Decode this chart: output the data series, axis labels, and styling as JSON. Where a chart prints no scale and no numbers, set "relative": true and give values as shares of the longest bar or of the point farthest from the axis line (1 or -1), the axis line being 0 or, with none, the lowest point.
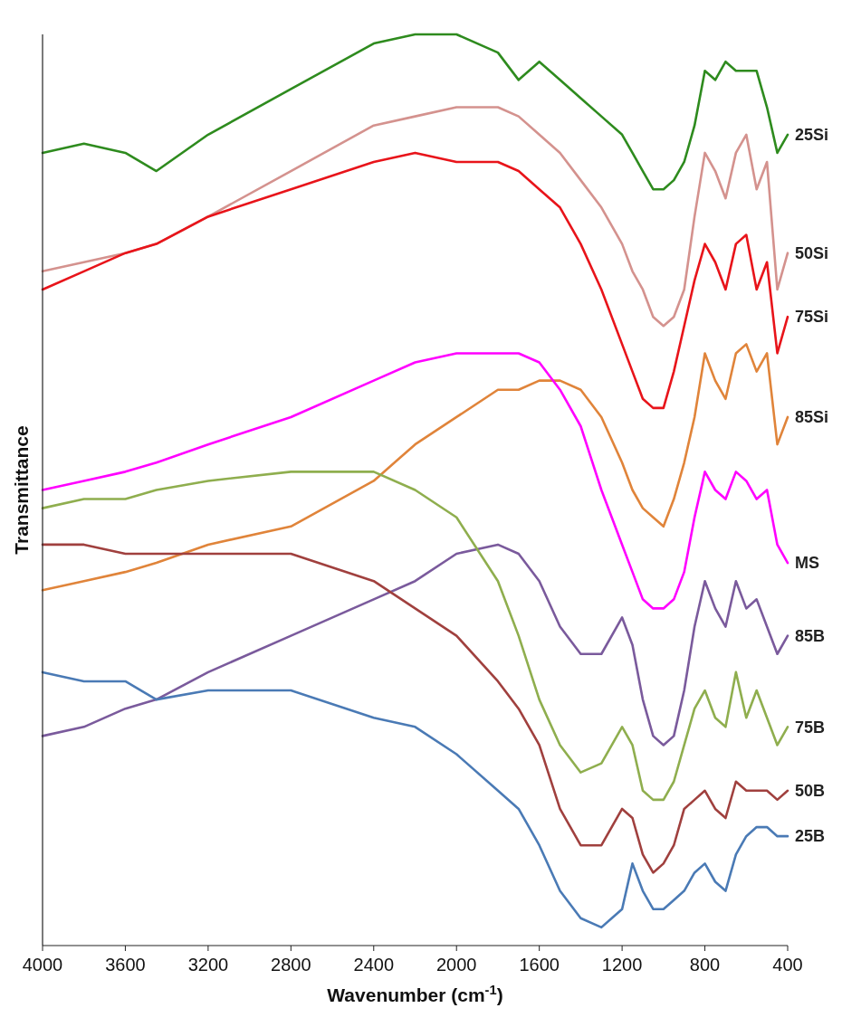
{
  "chart_data": {
    "type": "line",
    "relative": true,
    "xlabel": "Wavenumber (cm$^{-1}$)",
    "ylabel": "Transmittance",
    "xlim": [
      4000,
      400
    ],
    "xticks": [
      4000,
      3600,
      3200,
      2800,
      2400,
      2000,
      1600,
      1200,
      800,
      400
    ],
    "x": [
      4000,
      3800,
      3600,
      3450,
      3200,
      2800,
      2400,
      2200,
      2000,
      1800,
      1700,
      1600,
      1500,
      1400,
      1300,
      1200,
      1150,
      1100,
      1050,
      1000,
      950,
      900,
      850,
      800,
      750,
      700,
      650,
      600,
      550,
      500,
      450,
      400
    ],
    "series": [
      {
        "name": "25Si",
        "color": "#2e8b1e",
        "values": [
          0.87,
          0.88,
          0.87,
          0.85,
          0.89,
          0.94,
          0.99,
          1.0,
          1.0,
          0.98,
          0.95,
          0.97,
          0.95,
          0.93,
          0.91,
          0.89,
          0.87,
          0.85,
          0.83,
          0.83,
          0.84,
          0.86,
          0.9,
          0.96,
          0.95,
          0.97,
          0.96,
          0.96,
          0.96,
          0.92,
          0.87,
          0.89
        ]
      },
      {
        "name": "50Si",
        "color": "#d4928e",
        "values": [
          0.74,
          0.75,
          0.76,
          0.77,
          0.8,
          0.85,
          0.9,
          0.91,
          0.92,
          0.92,
          0.91,
          0.89,
          0.87,
          0.84,
          0.81,
          0.77,
          0.74,
          0.72,
          0.69,
          0.68,
          0.69,
          0.72,
          0.8,
          0.87,
          0.85,
          0.82,
          0.87,
          0.89,
          0.83,
          0.86,
          0.72,
          0.76
        ]
      },
      {
        "name": "75Si",
        "color": "#e8141a",
        "values": [
          0.72,
          0.74,
          0.76,
          0.77,
          0.8,
          0.83,
          0.86,
          0.87,
          0.86,
          0.86,
          0.85,
          0.83,
          0.81,
          0.77,
          0.72,
          0.66,
          0.63,
          0.6,
          0.59,
          0.59,
          0.63,
          0.68,
          0.73,
          0.77,
          0.75,
          0.72,
          0.77,
          0.78,
          0.72,
          0.75,
          0.65,
          0.69
        ]
      },
      {
        "name": "85Si",
        "color": "#e0843a",
        "values": [
          0.39,
          0.4,
          0.41,
          0.42,
          0.44,
          0.46,
          0.51,
          0.55,
          0.58,
          0.61,
          0.61,
          0.62,
          0.62,
          0.61,
          0.58,
          0.53,
          0.5,
          0.48,
          0.47,
          0.46,
          0.49,
          0.53,
          0.58,
          0.65,
          0.62,
          0.6,
          0.65,
          0.66,
          0.63,
          0.65,
          0.55,
          0.58
        ]
      },
      {
        "name": "MS",
        "color": "#ff00ff",
        "values": [
          0.5,
          0.51,
          0.52,
          0.53,
          0.55,
          0.58,
          0.62,
          0.64,
          0.65,
          0.65,
          0.65,
          0.64,
          0.61,
          0.57,
          0.5,
          0.44,
          0.41,
          0.38,
          0.37,
          0.37,
          0.38,
          0.41,
          0.47,
          0.52,
          0.5,
          0.49,
          0.52,
          0.51,
          0.49,
          0.5,
          0.44,
          0.42
        ]
      },
      {
        "name": "85B",
        "color": "#7a5a9c",
        "values": [
          0.23,
          0.24,
          0.26,
          0.27,
          0.3,
          0.34,
          0.38,
          0.4,
          0.43,
          0.44,
          0.43,
          0.4,
          0.35,
          0.32,
          0.32,
          0.36,
          0.33,
          0.27,
          0.23,
          0.22,
          0.23,
          0.28,
          0.35,
          0.4,
          0.37,
          0.35,
          0.4,
          0.37,
          0.38,
          0.35,
          0.32,
          0.34
        ]
      },
      {
        "name": "75B",
        "color": "#8fae4e",
        "values": [
          0.48,
          0.49,
          0.49,
          0.5,
          0.51,
          0.52,
          0.52,
          0.5,
          0.47,
          0.4,
          0.34,
          0.27,
          0.22,
          0.19,
          0.2,
          0.24,
          0.22,
          0.17,
          0.16,
          0.16,
          0.18,
          0.22,
          0.26,
          0.28,
          0.25,
          0.24,
          0.3,
          0.25,
          0.28,
          0.25,
          0.22,
          0.24
        ]
      },
      {
        "name": "50B",
        "color": "#a0403e",
        "values": [
          0.44,
          0.44,
          0.43,
          0.43,
          0.43,
          0.43,
          0.4,
          0.37,
          0.34,
          0.29,
          0.26,
          0.22,
          0.15,
          0.11,
          0.11,
          0.15,
          0.14,
          0.1,
          0.08,
          0.09,
          0.11,
          0.15,
          0.16,
          0.17,
          0.15,
          0.14,
          0.18,
          0.17,
          0.17,
          0.17,
          0.16,
          0.17
        ]
      },
      {
        "name": "25B",
        "color": "#4a7ab5",
        "values": [
          0.3,
          0.29,
          0.29,
          0.27,
          0.28,
          0.28,
          0.25,
          0.24,
          0.21,
          0.17,
          0.15,
          0.11,
          0.06,
          0.03,
          0.02,
          0.04,
          0.09,
          0.06,
          0.04,
          0.04,
          0.05,
          0.06,
          0.08,
          0.09,
          0.07,
          0.06,
          0.1,
          0.12,
          0.13,
          0.13,
          0.12,
          0.12
        ]
      }
    ]
  }
}
